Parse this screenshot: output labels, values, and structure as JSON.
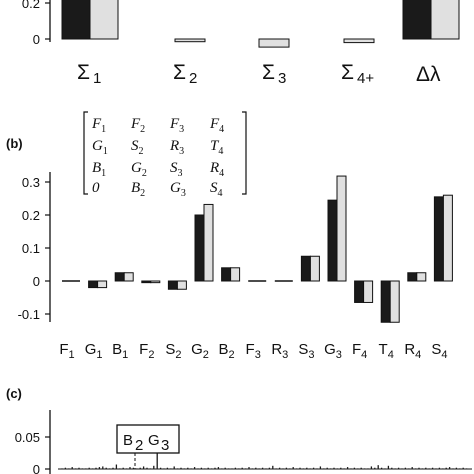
{
  "colors": {
    "dark": "#1a1a1a",
    "light": "#e0e0e0",
    "axis": "#111111",
    "bar_edge": "#111111"
  },
  "chart_data": [
    {
      "panel": "a",
      "type": "bar",
      "categories": [
        "Σ1",
        "Σ2",
        "Σ3",
        "Σ4+",
        "Δλ"
      ],
      "series": [
        {
          "values": [
            0.29,
            null,
            null,
            null,
            0.29
          ]
        },
        {
          "values": [
            0.29,
            -0.015,
            -0.045,
            -0.02,
            0.29
          ]
        }
      ],
      "yticks": [
        "0.2",
        "0"
      ],
      "ylim": [
        -0.06,
        0.3
      ]
    },
    {
      "panel": "b",
      "label": "(b)",
      "type": "bar",
      "categories": [
        "F1",
        "G1",
        "B1",
        "F2",
        "S2",
        "G2",
        "B2",
        "F3",
        "R3",
        "S3",
        "G3",
        "F4",
        "T4",
        "R4",
        "S4"
      ],
      "series": [
        {
          "values": [
            0.0,
            -0.02,
            0.025,
            -0.005,
            -0.025,
            0.2,
            0.04,
            -0.003,
            -0.003,
            0.075,
            0.245,
            -0.065,
            -0.125,
            0.025,
            0.255
          ]
        },
        {
          "values": [
            0.0,
            -0.02,
            0.025,
            -0.005,
            -0.025,
            0.232,
            0.04,
            -0.003,
            -0.003,
            0.075,
            0.318,
            -0.065,
            -0.125,
            0.025,
            0.26
          ]
        }
      ],
      "yticks": [
        "0.3",
        "0.2",
        "0.1",
        "0",
        "-0.1"
      ],
      "ylim": [
        -0.14,
        0.34
      ],
      "matrix": [
        [
          "F1",
          "F2",
          "F3",
          "F4"
        ],
        [
          "G1",
          "S2",
          "R3",
          "T4"
        ],
        [
          "B1",
          "G2",
          "S3",
          "R4"
        ],
        [
          "0",
          "B2",
          "G3",
          "S4"
        ]
      ]
    },
    {
      "panel": "c",
      "label": "(c)",
      "type": "bar",
      "yticks": [
        "0.05",
        "0"
      ],
      "ylim": [
        0,
        0.066
      ],
      "annotation": "B2 G3",
      "annotation_x": 0.155,
      "values": [
        0.001,
        0.002,
        0.001,
        0.003,
        0.001,
        0.002,
        0.001,
        0.001,
        0.002,
        0.001,
        0.002,
        0.003,
        0.004,
        0.002,
        0.001,
        0.002,
        0.007,
        0.001,
        0.002,
        0.001,
        0.003,
        0.002,
        0.001,
        0.002,
        0.004,
        0.002,
        0.001,
        0.005,
        0.0625,
        0.002,
        0.001,
        0.002,
        0.001,
        0.004,
        0.001,
        0.002,
        0.001,
        0.002,
        0.001,
        0.003,
        0.001,
        0.002,
        0.001,
        0.002,
        0.001,
        0.002,
        0.003,
        0.001,
        0.002,
        0.001,
        0.001,
        0.002,
        0.001,
        0.002,
        0.001,
        0.003,
        0.001,
        0.002,
        0.001,
        0.002,
        0.001,
        0.002,
        0.005,
        0.001,
        0.002,
        0.001,
        0.002,
        0.001,
        0.003,
        0.001,
        0.002,
        0.001,
        0.002,
        0.001,
        0.002,
        0.001,
        0.004,
        0.001,
        0.002,
        0.001,
        0.002,
        0.001,
        0.002,
        0.001,
        0.003,
        0.001,
        0.002,
        0.001,
        0.002,
        0.001,
        0.001,
        0.004,
        0.002,
        0.006,
        0.002,
        0.001,
        0.005,
        0.002,
        0.001,
        0.002,
        0.001,
        0.002,
        0.001,
        0.003,
        0.001,
        0.002,
        0.001,
        0.002,
        0.001,
        0.002,
        0.001,
        0.002,
        0.001,
        0.002,
        0.003,
        0.001,
        0.002,
        0.001,
        0.002,
        0.001
      ]
    }
  ]
}
